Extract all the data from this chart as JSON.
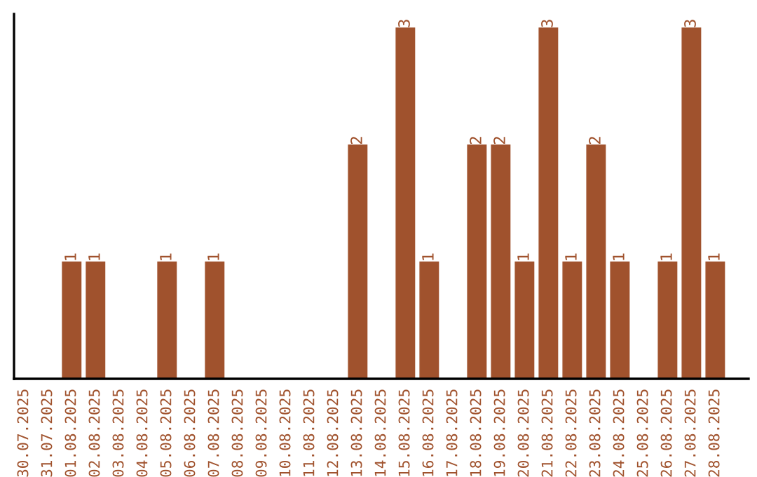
{
  "chart_data": {
    "type": "bar",
    "categories": [
      "30.07.2025",
      "31.07.2025",
      "01.08.2025",
      "02.08.2025",
      "03.08.2025",
      "04.08.2025",
      "05.08.2025",
      "06.08.2025",
      "07.08.2025",
      "08.08.2025",
      "09.08.2025",
      "10.08.2025",
      "11.08.2025",
      "12.08.2025",
      "13.08.2025",
      "14.08.2025",
      "15.08.2025",
      "16.08.2025",
      "17.08.2025",
      "18.08.2025",
      "19.08.2025",
      "20.08.2025",
      "21.08.2025",
      "22.08.2025",
      "23.08.2025",
      "24.08.2025",
      "25.08.2025",
      "26.08.2025",
      "27.08.2025",
      "28.08.2025"
    ],
    "values": [
      0,
      0,
      1,
      1,
      0,
      0,
      1,
      0,
      1,
      0,
      0,
      0,
      0,
      0,
      2,
      0,
      3,
      1,
      0,
      2,
      2,
      1,
      3,
      1,
      2,
      1,
      0,
      1,
      3,
      1
    ],
    "value_labels": [
      null,
      null,
      "1",
      "1",
      null,
      null,
      "1",
      null,
      "1",
      null,
      null,
      null,
      null,
      null,
      "2",
      null,
      "3",
      "1",
      null,
      "2",
      "2",
      "1",
      "3",
      "1",
      "2",
      "1",
      null,
      "1",
      "3",
      "1"
    ],
    "color": "#a0522d",
    "tick_labels": "x",
    "grid": false,
    "legend": false
  }
}
